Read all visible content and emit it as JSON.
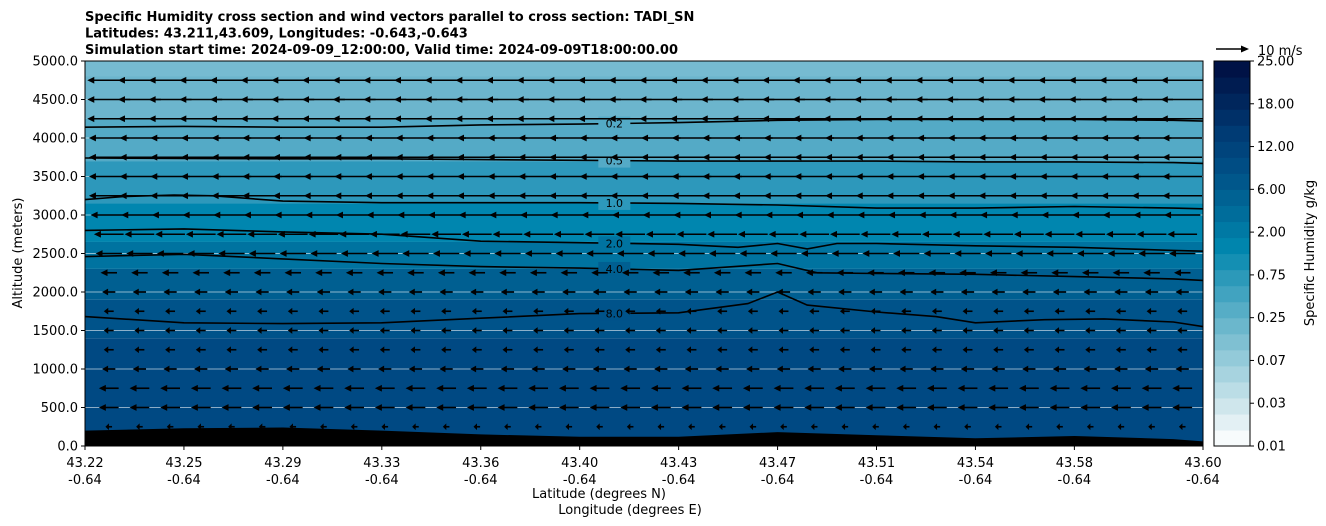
{
  "chart_data": {
    "type": "contour",
    "title_lines": [
      "Specific Humidity cross section and wind vectors parallel to cross section: TADI_SN",
      "Latitudes: 43.211,43.609, Longitudes: -0.643,-0.643",
      "Simulation start time: 2024-09-09_12:00:00, Valid time: 2024-09-09T18:00:00.00"
    ],
    "ylabel": "Altitude (meters)",
    "xlabel_line1": "Latitude (degrees N)",
    "xlabel_line2": "Longitude (degrees E)",
    "ylim": [
      0,
      5000
    ],
    "y_ticks": [
      0,
      500,
      1000,
      1500,
      2000,
      2500,
      3000,
      3500,
      4000,
      4500,
      5000
    ],
    "y_tick_labels": [
      "0.0",
      "500.0",
      "1000.0",
      "1500.0",
      "2000.0",
      "2500.0",
      "3000.0",
      "3500.0",
      "4000.0",
      "4500.0",
      "5000.0"
    ],
    "x_range": [
      0,
      11.3
    ],
    "x_ticks": [
      0,
      1,
      2,
      3,
      4,
      5,
      6,
      7,
      8,
      9,
      10,
      11
    ],
    "x_tick_lat": [
      "43.22",
      "43.25",
      "43.29",
      "43.33",
      "43.36",
      "43.40",
      "43.43",
      "43.47",
      "43.51",
      "43.54",
      "43.58",
      "43.60"
    ],
    "x_tick_lon": [
      "-0.64",
      "-0.64",
      "-0.64",
      "-0.64",
      "-0.64",
      "-0.64",
      "-0.64",
      "-0.64",
      "-0.64",
      "-0.64",
      "-0.64",
      "-0.64"
    ],
    "horizontal_grid": true,
    "colorbar": {
      "label": "Specific Humidity g/kg",
      "tick_labels": [
        "0.01",
        "0.03",
        "0.07",
        "0.25",
        "0.75",
        "2.00",
        "6.00",
        "12.00",
        "18.00",
        "25.00"
      ],
      "colors": [
        "#f7fbfc",
        "#e3f0f4",
        "#cfe6ec",
        "#bbdde6",
        "#a7d3df",
        "#93cad9",
        "#7fc0d2",
        "#6bb7cc",
        "#56adc6",
        "#41a3c0",
        "#2c99b9",
        "#148fb3",
        "#0085ad",
        "#0079a4",
        "#006d9b",
        "#006293",
        "#00578b",
        "#004d84",
        "#00447c",
        "#003b74",
        "#003068",
        "#00265c",
        "#001c51",
        "#001246"
      ]
    },
    "contour_levels": [
      {
        "label": "0.2",
        "x": [
          0,
          1,
          2,
          3,
          4,
          5,
          6,
          7,
          8,
          9,
          10,
          11,
          11.3
        ],
        "y": [
          4140,
          4150,
          4140,
          4140,
          4170,
          4180,
          4200,
          4230,
          4240,
          4240,
          4240,
          4230,
          4220
        ]
      },
      {
        "label": "0.5",
        "x": [
          0,
          1,
          2,
          3,
          4,
          5,
          6,
          7,
          8,
          9,
          10,
          11,
          11.3
        ],
        "y": [
          3740,
          3735,
          3730,
          3730,
          3720,
          3710,
          3700,
          3700,
          3700,
          3690,
          3690,
          3680,
          3670
        ]
      },
      {
        "label": "1.0",
        "x": [
          0,
          0.4,
          0.9,
          1.3,
          2,
          3,
          4,
          5,
          6,
          7,
          8,
          9,
          10,
          11,
          11.3
        ],
        "y": [
          3200,
          3240,
          3260,
          3250,
          3180,
          3160,
          3160,
          3160,
          3150,
          3130,
          3090,
          3090,
          3110,
          3090,
          3080
        ]
      },
      {
        "label": "2.0",
        "x": [
          0,
          1,
          2,
          3,
          4,
          5,
          6,
          6.6,
          7,
          7.3,
          7.6,
          8,
          9,
          10,
          11,
          11.3
        ],
        "y": [
          2800,
          2820,
          2780,
          2750,
          2660,
          2640,
          2620,
          2580,
          2630,
          2560,
          2630,
          2630,
          2600,
          2580,
          2540,
          2530
        ]
      },
      {
        "label": "4.0",
        "x": [
          0,
          1,
          2,
          3,
          4,
          5,
          6,
          7,
          7.4,
          8,
          9,
          10,
          11,
          11.3
        ],
        "y": [
          2460,
          2490,
          2430,
          2370,
          2330,
          2310,
          2280,
          2370,
          2250,
          2240,
          2230,
          2200,
          2170,
          2150
        ]
      },
      {
        "label": "8.0",
        "x": [
          0,
          1,
          2,
          3,
          4,
          5,
          6,
          6.7,
          7,
          7.3,
          8,
          8.6,
          9,
          9.7,
          10.3,
          11,
          11.3
        ],
        "y": [
          1680,
          1600,
          1590,
          1600,
          1660,
          1720,
          1730,
          1850,
          2000,
          1830,
          1740,
          1680,
          1600,
          1640,
          1650,
          1610,
          1550
        ]
      }
    ],
    "terrain": {
      "x": [
        0,
        1,
        2,
        3,
        4,
        5,
        6,
        7,
        8,
        9,
        10,
        11,
        11.3
      ],
      "y": [
        200,
        230,
        240,
        200,
        150,
        120,
        120,
        180,
        140,
        100,
        130,
        90,
        60
      ]
    },
    "wind_vectors": {
      "reference_label": "10 m/s",
      "reference_speed": 10,
      "levels_m": [
        4750,
        4500,
        4250,
        4000,
        3750,
        3500,
        3250,
        3000,
        2750,
        2500,
        2250,
        2000,
        1750,
        1500,
        1250,
        1000,
        750,
        500,
        250
      ],
      "u_ms": [
        -13,
        -13,
        -13,
        -12,
        -12,
        -12,
        -12,
        -11,
        -9,
        -8,
        -5,
        -4,
        -3,
        -3,
        -3,
        -4,
        -6,
        -6,
        -2
      ],
      "columns_x_start": 0.24,
      "columns_x_step": 0.31,
      "columns_count": 36
    }
  }
}
